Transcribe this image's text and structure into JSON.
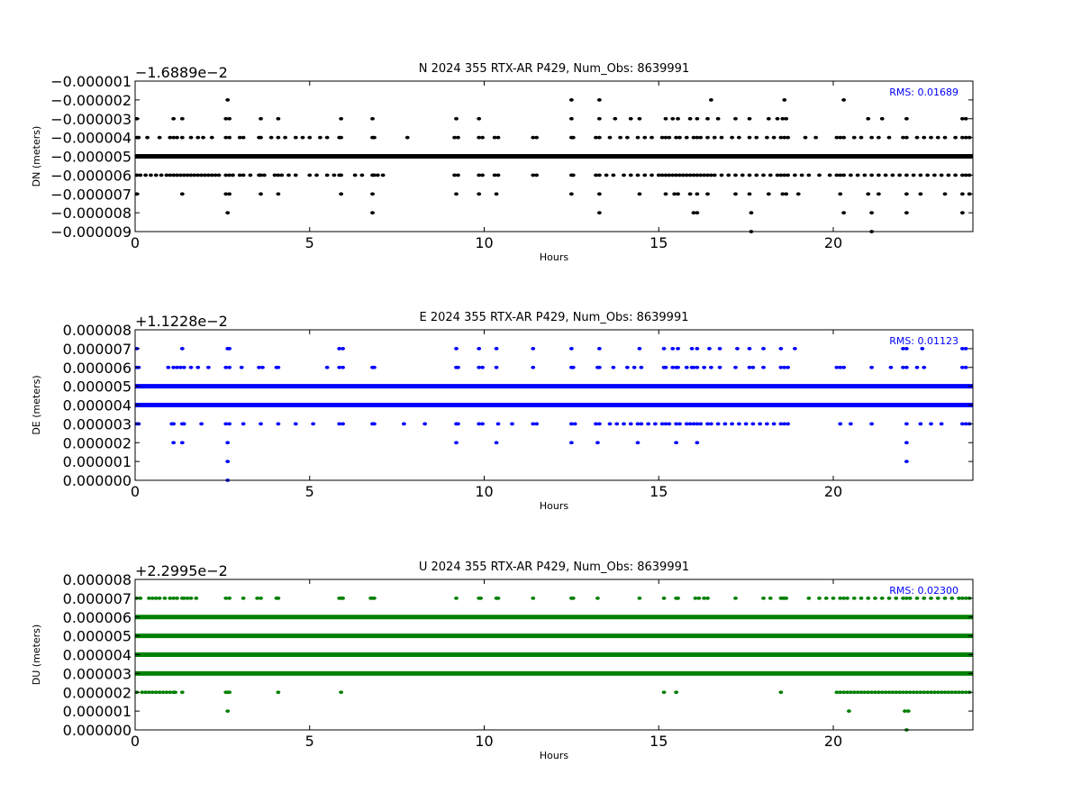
{
  "chart_data": [
    {
      "type": "scatter",
      "title": "N 2024 355 RTX-AR  P429, Num_Obs: 8639991",
      "xlabel": "Hours",
      "ylabel": "DN (meters)",
      "offset_label": "−1.6889e−2",
      "xlim": [
        0,
        24
      ],
      "ylim": [
        -9e-06,
        -1e-06
      ],
      "xticks": [
        "0",
        "5",
        "10",
        "15",
        "20"
      ],
      "yticks": [
        "−0.000001",
        "−0.000002",
        "−0.000003",
        "−0.000004",
        "−0.000005",
        "−0.000006",
        "−0.000007",
        "−0.000008",
        "−0.000009"
      ],
      "annotation": "RMS:  0.01689",
      "color": "#000000",
      "annotation_color": "#0000ff",
      "series": [
        {
          "y": -2e-06,
          "x": [
            2.65,
            12.5,
            13.3,
            16.5,
            18.6,
            20.3
          ]
        },
        {
          "y": -3e-06,
          "x": [
            0.05,
            1.1,
            1.35,
            2.6,
            2.7,
            3.6,
            4.1,
            5.9,
            6.8,
            9.2,
            9.85,
            12.5,
            13.3,
            13.75,
            14.2,
            14.45,
            15.2,
            15.4,
            15.55,
            15.9,
            16.1,
            16.4,
            16.7,
            17.2,
            17.6,
            18.15,
            18.4,
            18.55,
            18.65,
            21.0,
            21.4,
            22.1,
            23.7,
            23.8
          ]
        },
        {
          "y": -4e-06,
          "x": [
            0.05,
            0.1,
            0.35,
            0.7,
            1.0,
            1.1,
            1.2,
            1.35,
            1.6,
            1.8,
            1.95,
            2.2,
            2.6,
            2.7,
            3.0,
            3.1,
            3.55,
            3.6,
            3.9,
            4.1,
            4.3,
            4.6,
            4.8,
            5.0,
            5.3,
            5.5,
            5.85,
            5.9,
            6.8,
            6.85,
            7.8,
            9.15,
            9.25,
            9.85,
            9.95,
            10.3,
            10.4,
            11.4,
            11.5,
            12.5,
            12.55,
            13.2,
            13.3,
            13.6,
            13.9,
            14.1,
            14.4,
            14.6,
            14.8,
            15.1,
            15.2,
            15.3,
            15.5,
            15.6,
            15.8,
            16.0,
            16.1,
            16.2,
            16.4,
            16.6,
            16.8,
            17.1,
            17.3,
            17.6,
            17.8,
            18.1,
            18.3,
            18.5,
            18.6,
            18.7,
            19.2,
            19.5,
            20.1,
            20.2,
            20.3,
            20.6,
            20.8,
            21.1,
            21.3,
            21.6,
            22.0,
            22.1,
            22.4,
            22.6,
            22.8,
            23.0,
            23.2,
            23.5,
            23.7,
            23.8,
            23.9
          ]
        },
        {
          "y": -5e-06,
          "band": [
            0,
            24
          ]
        },
        {
          "y": -6e-06,
          "x": [
            0.05,
            0.15,
            0.3,
            0.45,
            0.6,
            0.75,
            0.9,
            1.0,
            1.1,
            1.2,
            1.3,
            1.4,
            1.5,
            1.6,
            1.7,
            1.8,
            1.9,
            2.0,
            2.1,
            2.2,
            2.3,
            2.4,
            2.6,
            2.7,
            2.8,
            3.0,
            3.1,
            3.3,
            3.55,
            3.6,
            3.7,
            4.0,
            4.1,
            4.2,
            4.4,
            4.6,
            5.0,
            5.2,
            5.5,
            5.7,
            5.85,
            5.9,
            6.3,
            6.5,
            6.8,
            6.85,
            6.95,
            7.1,
            9.15,
            9.25,
            9.85,
            9.95,
            10.3,
            10.4,
            11.4,
            11.5,
            12.5,
            12.55,
            13.2,
            13.3,
            13.5,
            13.7,
            14.0,
            14.2,
            14.4,
            14.6,
            14.8,
            15.0,
            15.1,
            15.2,
            15.3,
            15.4,
            15.5,
            15.6,
            15.7,
            15.8,
            15.9,
            16.0,
            16.1,
            16.2,
            16.3,
            16.4,
            16.5,
            16.6,
            16.8,
            17.0,
            17.2,
            17.4,
            17.6,
            17.8,
            18.0,
            18.2,
            18.4,
            18.5,
            18.6,
            18.7,
            18.9,
            19.1,
            19.3,
            19.6,
            19.9,
            20.1,
            20.2,
            20.3,
            20.5,
            20.7,
            20.9,
            21.1,
            21.3,
            21.5,
            21.7,
            21.9,
            22.1,
            22.3,
            22.5,
            22.7,
            22.9,
            23.1,
            23.3,
            23.5,
            23.7,
            23.8,
            23.9
          ]
        },
        {
          "y": -7e-06,
          "x": [
            0.05,
            1.35,
            2.6,
            2.7,
            3.6,
            4.1,
            5.9,
            6.8,
            9.2,
            9.85,
            10.35,
            12.5,
            13.3,
            14.45,
            15.2,
            15.45,
            15.55,
            15.9,
            16.1,
            16.4,
            17.2,
            17.6,
            18.15,
            18.55,
            18.65,
            19.0,
            20.2,
            21.0,
            21.3,
            22.1,
            22.5,
            23.2,
            23.7,
            23.9
          ]
        },
        {
          "y": -8e-06,
          "x": [
            2.65,
            6.8,
            13.3,
            16.0,
            16.1,
            17.65,
            20.3,
            21.1,
            22.1,
            23.7
          ]
        },
        {
          "y": -9e-06,
          "x": [
            17.65,
            21.1
          ]
        }
      ]
    },
    {
      "type": "scatter",
      "title": "E 2024 355 RTX-AR  P429, Num_Obs: 8639991",
      "xlabel": "Hours",
      "ylabel": "DE (meters)",
      "offset_label": "+1.1228e−2",
      "xlim": [
        0,
        24
      ],
      "ylim": [
        0,
        8e-06
      ],
      "xticks": [
        "0",
        "5",
        "10",
        "15",
        "20"
      ],
      "yticks": [
        "0.000008",
        "0.000007",
        "0.000006",
        "0.000005",
        "0.000004",
        "0.000003",
        "0.000002",
        "0.000001",
        "0.000000"
      ],
      "annotation": "RMS:  0.01123",
      "color": "#0000ff",
      "annotation_color": "#0000ff",
      "series": [
        {
          "y": 7e-06,
          "x": [
            0.05,
            1.35,
            2.65,
            2.7,
            5.85,
            5.95,
            9.2,
            9.85,
            10.35,
            11.4,
            12.5,
            13.3,
            14.45,
            15.15,
            15.4,
            15.55,
            15.95,
            16.1,
            16.45,
            16.75,
            17.25,
            17.6,
            18.0,
            18.5,
            18.9,
            22.0,
            22.1,
            22.55,
            23.7,
            23.8
          ]
        },
        {
          "y": 6e-06,
          "x": [
            0.05,
            0.1,
            0.95,
            1.1,
            1.2,
            1.3,
            1.4,
            1.6,
            1.8,
            2.1,
            2.6,
            2.7,
            3.05,
            3.55,
            3.65,
            4.05,
            4.1,
            5.5,
            5.85,
            5.95,
            6.8,
            6.85,
            9.2,
            9.25,
            9.85,
            9.95,
            10.35,
            11.4,
            12.5,
            12.55,
            13.25,
            13.3,
            13.7,
            14.1,
            14.3,
            14.5,
            15.15,
            15.2,
            15.4,
            15.5,
            15.55,
            15.8,
            15.95,
            16.0,
            16.1,
            16.3,
            16.5,
            16.75,
            17.2,
            17.6,
            17.7,
            18.0,
            18.5,
            18.6,
            18.7,
            20.1,
            20.2,
            20.3,
            21.1,
            21.65,
            22.0,
            22.1,
            22.4,
            22.6,
            23.7,
            23.8
          ]
        },
        {
          "y": 5e-06,
          "band": [
            0,
            24
          ]
        },
        {
          "y": 4e-06,
          "band": [
            0,
            24
          ]
        },
        {
          "y": 3e-06,
          "x": [
            0.05,
            0.1,
            1.05,
            1.1,
            1.35,
            1.4,
            1.9,
            2.6,
            2.7,
            3.1,
            3.6,
            4.1,
            4.6,
            5.1,
            5.85,
            5.95,
            6.8,
            6.85,
            7.7,
            8.3,
            9.2,
            9.25,
            9.85,
            9.95,
            10.4,
            10.8,
            11.4,
            11.5,
            12.5,
            12.6,
            13.2,
            13.3,
            13.6,
            13.8,
            14.0,
            14.2,
            14.4,
            14.5,
            14.7,
            14.9,
            15.1,
            15.2,
            15.3,
            15.5,
            15.6,
            15.8,
            15.9,
            16.0,
            16.1,
            16.2,
            16.4,
            16.5,
            16.7,
            16.9,
            17.1,
            17.3,
            17.5,
            17.7,
            17.9,
            18.1,
            18.3,
            18.5,
            18.6,
            18.7,
            20.2,
            20.5,
            21.1,
            22.1,
            22.5,
            22.8,
            23.1,
            23.7,
            23.8,
            23.9
          ]
        },
        {
          "y": 2e-06,
          "x": [
            1.1,
            1.35,
            2.65,
            9.2,
            10.35,
            12.5,
            13.25,
            14.4,
            15.5,
            16.1,
            22.1
          ]
        },
        {
          "y": 1e-06,
          "x": [
            2.65,
            22.1
          ]
        },
        {
          "y": 0.0,
          "x": [
            2.65
          ]
        }
      ]
    },
    {
      "type": "scatter",
      "title": "U 2024 355 RTX-AR  P429, Num_Obs: 8639991",
      "xlabel": "Hours",
      "ylabel": "DU (meters)",
      "offset_label": "+2.2995e−2",
      "xlim": [
        0,
        24
      ],
      "ylim": [
        0,
        8e-06
      ],
      "xticks": [
        "0",
        "5",
        "10",
        "15",
        "20"
      ],
      "yticks": [
        "0.000008",
        "0.000007",
        "0.000006",
        "0.000005",
        "0.000004",
        "0.000003",
        "0.000002",
        "0.000001",
        "0.000000"
      ],
      "annotation": "RMS:  0.02300",
      "color": "#008000",
      "annotation_color": "#0000ff",
      "series": [
        {
          "y": 7e-06,
          "x": [
            0.05,
            0.15,
            0.4,
            0.5,
            0.6,
            0.7,
            0.85,
            1.0,
            1.1,
            1.2,
            1.35,
            1.4,
            1.5,
            1.6,
            1.75,
            2.6,
            2.7,
            3.1,
            3.5,
            3.6,
            4.05,
            4.1,
            5.85,
            5.9,
            5.95,
            6.75,
            6.8,
            6.85,
            9.2,
            9.85,
            9.9,
            10.35,
            10.4,
            11.4,
            12.5,
            12.55,
            13.25,
            14.45,
            15.15,
            15.5,
            15.55,
            16.05,
            16.15,
            16.3,
            16.4,
            17.2,
            18.0,
            18.2,
            18.5,
            18.55,
            18.6,
            18.65,
            19.3,
            19.6,
            19.8,
            20.0,
            20.2,
            20.3,
            20.4,
            20.6,
            20.8,
            21.0,
            21.2,
            21.4,
            21.6,
            21.8,
            22.0,
            22.1,
            22.2,
            22.4,
            22.6,
            22.8,
            23.0,
            23.2,
            23.4,
            23.6,
            23.7,
            23.8,
            23.9
          ]
        },
        {
          "y": 6e-06,
          "band": [
            0,
            24
          ]
        },
        {
          "y": 5e-06,
          "band": [
            0,
            24
          ]
        },
        {
          "y": 4e-06,
          "band": [
            0,
            24
          ]
        },
        {
          "y": 3e-06,
          "band": [
            0,
            24
          ]
        },
        {
          "y": 2e-06,
          "x": [
            0.05,
            0.2,
            0.3,
            0.4,
            0.5,
            0.6,
            0.7,
            0.8,
            0.9,
            1.0,
            1.1,
            1.15,
            1.35,
            2.6,
            2.65,
            2.7,
            4.1,
            5.9,
            15.15,
            15.5,
            18.5,
            20.1,
            20.2,
            20.3,
            20.4,
            20.5,
            20.6,
            20.7,
            20.8,
            20.9,
            21.0,
            21.1,
            21.2,
            21.3,
            21.4,
            21.5,
            21.6,
            21.7,
            21.8,
            21.9,
            22.0,
            22.1,
            22.2,
            22.3,
            22.4,
            22.5,
            22.6,
            22.7,
            22.8,
            22.9,
            23.0,
            23.1,
            23.2,
            23.3,
            23.4,
            23.5,
            23.6,
            23.7,
            23.8,
            23.9
          ]
        },
        {
          "y": 1e-06,
          "x": [
            2.65,
            20.45,
            22.05,
            22.15
          ]
        },
        {
          "y": 0.0,
          "x": [
            22.1
          ]
        }
      ]
    }
  ]
}
